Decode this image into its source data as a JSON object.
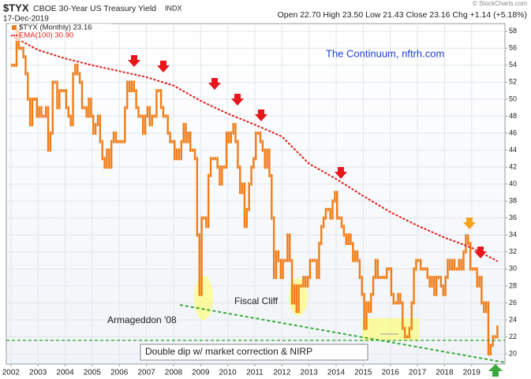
{
  "chart_data": {
    "type": "ohlc",
    "title": "$TYX",
    "subtitle": "CBOE 30-Year US Treasury Yield",
    "exchange": "INDX",
    "date": "17-Dec-2019",
    "quote": "Open 22.70  High 23.50  Low 21.43  Close 23.16  Chg +1.14 (+5.18%)",
    "credit": "© StockCharts.com",
    "annotations": [
      "The Continuum, nftrh.com",
      "Armageddon '08",
      "Fiscal Cliff",
      "Double dip w/ market correction & NIRP"
    ],
    "xlim": [
      2001.83,
      2020.23
    ],
    "xticks": [
      2002,
      2003,
      2004,
      2005,
      2006,
      2007,
      2008,
      2009,
      2010,
      2011,
      2012,
      2013,
      2014,
      2015,
      2016,
      2017,
      2018,
      2019
    ],
    "ylim": [
      18.8,
      58.9
    ],
    "yticks": [
      20,
      22,
      24,
      26,
      28,
      30,
      32,
      34,
      36,
      38,
      40,
      42,
      44,
      46,
      48,
      50,
      52,
      54,
      56,
      58
    ],
    "grid": true,
    "series": [
      {
        "name": "$TYX (Monthly) 23.16",
        "color": "#f07d18",
        "start": 2002,
        "step": 0.0833,
        "values": [
          54,
          54,
          58,
          56,
          56,
          55,
          53,
          50,
          47,
          50,
          50,
          48,
          49,
          48,
          48,
          49,
          44,
          46,
          52,
          52,
          49,
          51,
          51,
          51,
          49,
          48,
          47,
          53,
          54,
          53,
          52,
          49,
          49,
          48,
          50,
          48,
          46,
          47,
          48,
          45,
          43,
          42,
          44,
          42,
          45,
          46,
          45,
          45,
          45,
          45,
          49,
          52,
          51,
          52,
          51,
          49,
          48,
          48,
          46,
          48,
          49,
          47,
          48,
          48,
          51,
          51,
          49,
          48,
          48,
          46,
          45,
          45,
          43,
          44,
          43,
          45,
          47,
          45,
          46,
          44,
          44,
          43,
          34,
          27,
          36,
          36,
          35,
          41,
          43,
          43,
          43,
          42,
          40,
          42,
          42,
          46,
          45,
          46,
          47,
          45,
          42,
          39,
          40,
          35,
          37,
          40,
          42,
          43,
          46,
          46,
          45,
          44,
          42,
          44,
          41,
          36,
          29,
          32,
          31,
          29,
          31,
          31,
          34,
          31,
          26,
          28,
          25,
          28,
          28,
          29,
          28,
          29,
          31,
          31,
          31,
          29,
          33,
          35,
          36,
          37,
          37,
          36,
          38,
          39,
          36,
          36,
          35,
          34,
          33,
          34,
          33,
          31,
          32,
          31,
          29,
          27,
          23,
          26,
          25,
          27,
          29,
          31,
          29,
          29,
          29,
          29,
          30,
          30,
          27,
          26,
          26,
          27,
          26,
          23,
          22,
          22,
          23,
          26,
          30,
          31,
          31,
          30,
          30,
          30,
          29,
          28,
          29,
          27,
          29,
          29,
          28,
          27,
          29,
          31,
          30,
          31,
          30,
          30,
          31,
          30,
          32,
          33.9,
          33,
          30,
          30,
          30,
          28,
          29,
          26,
          25,
          26,
          20,
          21,
          22,
          22,
          23.16
        ]
      },
      {
        "name": "EMA(100) 30.90",
        "color": "#e0201b",
        "x": [
          2002,
          2003,
          2004,
          2005,
          2006,
          2007,
          2008,
          2009,
          2010,
          2011,
          2012,
          2013,
          2014,
          2015,
          2016,
          2017,
          2018,
          2019,
          2019.96
        ],
        "values": [
          57.5,
          55.8,
          54.8,
          54.0,
          53.3,
          52.6,
          51.6,
          49.8,
          48.3,
          47.0,
          45.6,
          42.4,
          40.6,
          38.6,
          36.7,
          35.1,
          33.7,
          32.5,
          30.9
        ]
      }
    ]
  }
}
